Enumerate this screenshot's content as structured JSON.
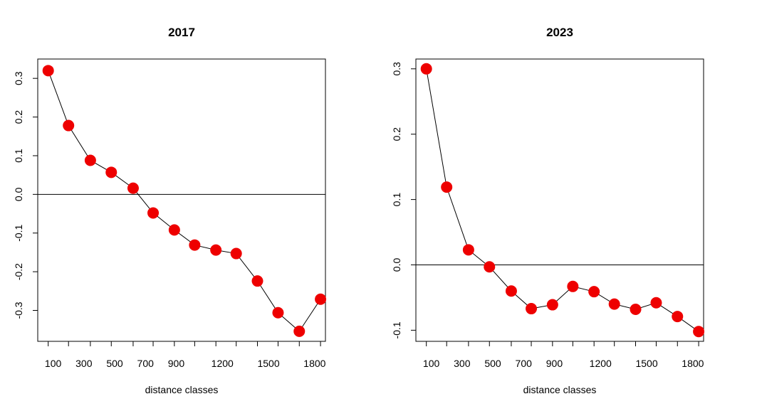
{
  "chart_data": [
    {
      "type": "line",
      "title": "2017",
      "xlabel": "distance classes",
      "ylabel": "",
      "x": [
        68,
        200,
        342,
        478,
        620,
        750,
        888,
        1020,
        1158,
        1290,
        1428,
        1562,
        1700,
        1838
      ],
      "values": [
        0.32,
        0.178,
        0.088,
        0.057,
        0.016,
        -0.048,
        -0.092,
        -0.131,
        -0.144,
        -0.153,
        -0.224,
        -0.306,
        -0.354,
        -0.271
      ],
      "xlim": [
        0,
        1870
      ],
      "ylim": [
        -0.38,
        0.35
      ],
      "xticks": [
        100,
        300,
        500,
        700,
        900,
        1200,
        1500,
        1800
      ],
      "xtick_positions": [
        68,
        200,
        342,
        478,
        620,
        750,
        888,
        1020,
        1158,
        1290,
        1428,
        1562,
        1700,
        1838
      ],
      "yticks": [
        -0.3,
        -0.2,
        -0.1,
        0.0,
        0.1,
        0.2,
        0.3
      ],
      "ytick_labels": [
        "-0.3",
        "-0.2",
        "-0.1",
        "0.0",
        "0.1",
        "0.2",
        "0.3"
      ],
      "hline": 0,
      "point_color": "#ee0000",
      "line_color": "#000000"
    },
    {
      "type": "line",
      "title": "2023",
      "xlabel": "distance classes",
      "ylabel": "",
      "x": [
        68,
        200,
        342,
        478,
        620,
        750,
        888,
        1020,
        1158,
        1290,
        1428,
        1562,
        1700,
        1838
      ],
      "values": [
        0.3,
        0.119,
        0.023,
        -0.003,
        -0.04,
        -0.067,
        -0.061,
        -0.033,
        -0.041,
        -0.06,
        -0.068,
        -0.058,
        -0.079,
        -0.102
      ],
      "xlim": [
        0,
        1870
      ],
      "ylim": [
        -0.117,
        0.315
      ],
      "xticks": [
        100,
        300,
        500,
        700,
        900,
        1200,
        1500,
        1800
      ],
      "xtick_positions": [
        68,
        200,
        342,
        478,
        620,
        750,
        888,
        1020,
        1158,
        1290,
        1428,
        1562,
        1700,
        1838
      ],
      "yticks": [
        -0.1,
        0.0,
        0.1,
        0.2,
        0.3
      ],
      "ytick_labels": [
        "-0.1",
        "0.0",
        "0.1",
        "0.2",
        "0.3"
      ],
      "hline": 0,
      "point_color": "#ee0000",
      "line_color": "#000000"
    }
  ]
}
